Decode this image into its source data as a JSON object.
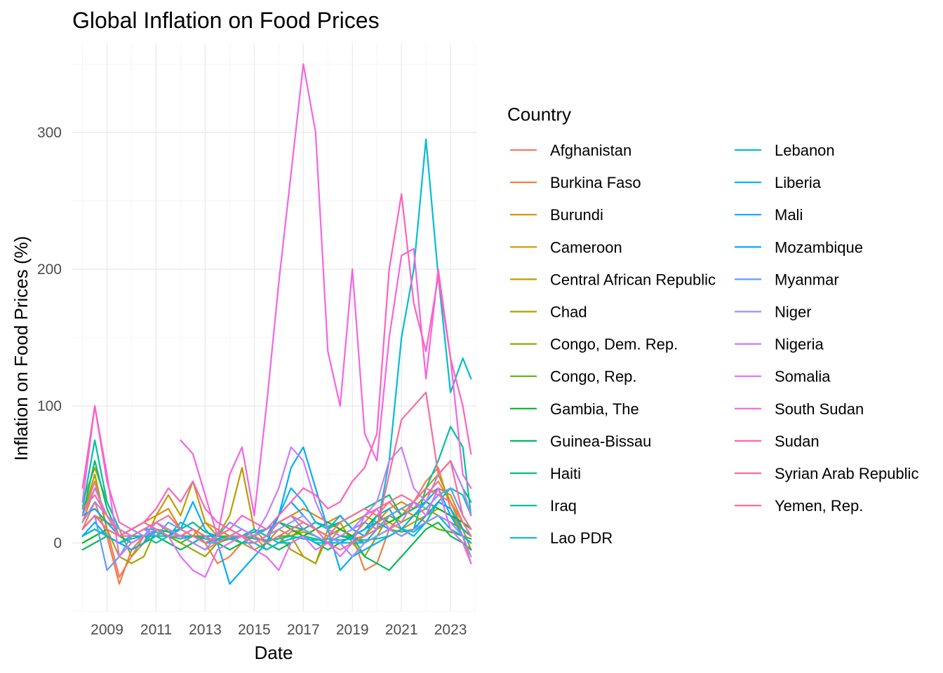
{
  "chart_data": {
    "type": "line",
    "title": "Global Inflation on Food Prices",
    "xlabel": "Date",
    "ylabel": "Inflation on Food Prices (%)",
    "x_ticks": [
      "2009",
      "2011",
      "2013",
      "2015",
      "2017",
      "2019",
      "2021",
      "2023"
    ],
    "y_ticks": [
      "0",
      "100",
      "200",
      "300"
    ],
    "ylim": [
      -50,
      365
    ],
    "xlim": [
      "2007-08",
      "2024-02"
    ],
    "grid": true,
    "legend": {
      "title": "Country",
      "placement": "right",
      "columns": 2
    },
    "dates": [
      "2008-01",
      "2008-07",
      "2009-01",
      "2009-07",
      "2010-01",
      "2010-07",
      "2011-01",
      "2011-07",
      "2012-01",
      "2012-07",
      "2013-01",
      "2013-07",
      "2014-01",
      "2014-07",
      "2015-01",
      "2015-07",
      "2016-01",
      "2016-07",
      "2017-01",
      "2017-07",
      "2018-01",
      "2018-07",
      "2019-01",
      "2019-07",
      "2020-01",
      "2020-07",
      "2021-01",
      "2021-07",
      "2022-01",
      "2022-07",
      "2023-01",
      "2023-07",
      "2023-11"
    ],
    "series": [
      {
        "name": "Afghanistan",
        "color": "#F8766D",
        "values": [
          20,
          45,
          10,
          -25,
          -10,
          5,
          15,
          10,
          5,
          0,
          -5,
          0,
          5,
          0,
          5,
          0,
          5,
          10,
          15,
          10,
          5,
          10,
          5,
          15,
          25,
          30,
          20,
          25,
          35,
          45,
          30,
          10,
          5
        ]
      },
      {
        "name": "Burkina Faso",
        "color": "#EE8043",
        "values": [
          10,
          30,
          5,
          -30,
          -5,
          5,
          15,
          8,
          5,
          10,
          0,
          -15,
          -10,
          0,
          5,
          -5,
          0,
          8,
          10,
          5,
          0,
          10,
          5,
          -20,
          -15,
          10,
          20,
          30,
          45,
          55,
          25,
          5,
          -15
        ]
      },
      {
        "name": "Burundi",
        "color": "#E08B00",
        "values": [
          15,
          40,
          20,
          5,
          10,
          15,
          20,
          25,
          10,
          5,
          15,
          10,
          5,
          0,
          5,
          10,
          15,
          20,
          25,
          20,
          15,
          20,
          10,
          5,
          15,
          25,
          30,
          25,
          35,
          40,
          35,
          15,
          5
        ]
      },
      {
        "name": "Cameroon",
        "color": "#CF9400",
        "values": [
          5,
          10,
          5,
          0,
          5,
          5,
          10,
          8,
          5,
          5,
          5,
          0,
          5,
          5,
          5,
          0,
          5,
          5,
          8,
          5,
          0,
          5,
          3,
          5,
          10,
          15,
          10,
          15,
          20,
          25,
          20,
          10,
          5
        ]
      },
      {
        "name": "Central African Republic",
        "color": "#BB9D00",
        "values": [
          30,
          55,
          30,
          10,
          -10,
          0,
          20,
          35,
          20,
          45,
          15,
          5,
          20,
          55,
          10,
          0,
          10,
          5,
          -10,
          -15,
          5,
          10,
          5,
          15,
          10,
          20,
          25,
          20,
          15,
          30,
          25,
          10,
          -5
        ]
      },
      {
        "name": "Chad",
        "color": "#A3A500",
        "values": [
          20,
          50,
          10,
          -10,
          -15,
          -10,
          10,
          5,
          0,
          -5,
          -10,
          0,
          5,
          0,
          -5,
          0,
          5,
          -5,
          -10,
          -15,
          10,
          15,
          0,
          -10,
          5,
          20,
          25,
          30,
          40,
          50,
          30,
          10,
          -5
        ]
      },
      {
        "name": "Congo, Dem. Rep.",
        "color": "#85AD00",
        "values": [
          10,
          20,
          15,
          10,
          5,
          5,
          5,
          10,
          5,
          5,
          0,
          5,
          5,
          5,
          10,
          5,
          15,
          20,
          15,
          10,
          5,
          10,
          15,
          20,
          15,
          20,
          15,
          20,
          25,
          20,
          15,
          10,
          5
        ]
      },
      {
        "name": "Congo, Rep.",
        "color": "#5BB300",
        "values": [
          5,
          10,
          5,
          0,
          5,
          5,
          10,
          5,
          0,
          5,
          5,
          0,
          3,
          0,
          5,
          0,
          5,
          5,
          10,
          5,
          0,
          5,
          5,
          0,
          5,
          10,
          8,
          10,
          15,
          10,
          8,
          5,
          3
        ]
      },
      {
        "name": "Gambia, The",
        "color": "#00B81F",
        "values": [
          0,
          5,
          10,
          5,
          0,
          5,
          10,
          5,
          5,
          10,
          5,
          0,
          5,
          10,
          5,
          10,
          15,
          10,
          5,
          10,
          15,
          10,
          5,
          10,
          20,
          15,
          20,
          25,
          30,
          25,
          20,
          15,
          10
        ]
      },
      {
        "name": "Guinea-Bissau",
        "color": "#00BC59",
        "values": [
          -5,
          0,
          5,
          0,
          -5,
          0,
          5,
          0,
          -5,
          0,
          5,
          0,
          -5,
          0,
          5,
          0,
          -5,
          0,
          5,
          0,
          -5,
          0,
          5,
          -10,
          -15,
          -20,
          -10,
          0,
          10,
          15,
          5,
          0,
          -5
        ]
      },
      {
        "name": "Haiti",
        "color": "#00BE81",
        "values": [
          20,
          60,
          25,
          5,
          10,
          5,
          10,
          8,
          10,
          15,
          8,
          5,
          3,
          5,
          8,
          10,
          15,
          12,
          10,
          15,
          12,
          15,
          20,
          25,
          30,
          35,
          20,
          25,
          30,
          50,
          60,
          40,
          30
        ]
      },
      {
        "name": "Iraq",
        "color": "#00C0A1",
        "values": [
          25,
          75,
          30,
          10,
          5,
          5,
          0,
          5,
          5,
          5,
          0,
          3,
          5,
          0,
          0,
          5,
          0,
          3,
          5,
          3,
          0,
          5,
          3,
          0,
          5,
          10,
          5,
          10,
          40,
          60,
          85,
          70,
          20
        ]
      },
      {
        "name": "Lao PDR",
        "color": "#00C0BC",
        "values": [
          5,
          10,
          5,
          0,
          3,
          5,
          8,
          5,
          3,
          5,
          3,
          2,
          3,
          5,
          3,
          2,
          3,
          5,
          3,
          2,
          3,
          2,
          3,
          2,
          3,
          5,
          10,
          8,
          15,
          30,
          40,
          35,
          20
        ]
      },
      {
        "name": "Lebanon",
        "color": "#00BDD3",
        "values": [
          5,
          10,
          5,
          0,
          5,
          5,
          5,
          5,
          5,
          5,
          0,
          0,
          5,
          0,
          0,
          -5,
          0,
          0,
          5,
          0,
          0,
          0,
          0,
          0,
          10,
          60,
          150,
          200,
          295,
          195,
          110,
          135,
          120
        ]
      },
      {
        "name": "Liberia",
        "color": "#00B6E9",
        "values": [
          10,
          20,
          10,
          5,
          5,
          10,
          10,
          5,
          15,
          10,
          5,
          0,
          5,
          5,
          10,
          5,
          20,
          40,
          30,
          15,
          10,
          20,
          10,
          5,
          20,
          25,
          10,
          5,
          15,
          20,
          10,
          5,
          0
        ]
      },
      {
        "name": "Mali",
        "color": "#00AEF9",
        "values": [
          5,
          15,
          5,
          0,
          -5,
          0,
          10,
          5,
          10,
          30,
          10,
          0,
          -30,
          -20,
          -10,
          0,
          20,
          55,
          70,
          40,
          10,
          -20,
          -10,
          -5,
          0,
          5,
          10,
          20,
          30,
          40,
          20,
          5,
          0
        ]
      },
      {
        "name": "Mozambique",
        "color": "#00A5FF",
        "values": [
          20,
          25,
          15,
          5,
          10,
          15,
          10,
          5,
          5,
          0,
          5,
          5,
          10,
          5,
          0,
          5,
          20,
          30,
          20,
          10,
          5,
          0,
          5,
          10,
          15,
          10,
          5,
          10,
          20,
          30,
          25,
          10,
          5
        ]
      },
      {
        "name": "Myanmar",
        "color": "#619CFF",
        "values": [
          10,
          20,
          -20,
          -10,
          5,
          10,
          5,
          15,
          10,
          5,
          0,
          5,
          15,
          10,
          5,
          10,
          15,
          20,
          10,
          5,
          0,
          5,
          10,
          15,
          10,
          20,
          25,
          30,
          25,
          35,
          40,
          20,
          10
        ]
      },
      {
        "name": "Niger",
        "color": "#9F8CFF",
        "values": [
          15,
          30,
          20,
          5,
          10,
          5,
          15,
          10,
          5,
          0,
          -5,
          5,
          10,
          5,
          0,
          5,
          10,
          15,
          20,
          10,
          5,
          0,
          -10,
          0,
          5,
          10,
          5,
          10,
          15,
          20,
          15,
          5,
          -10
        ]
      },
      {
        "name": "Nigeria",
        "color": "#C77CFF",
        "values": [
          20,
          40,
          20,
          10,
          5,
          10,
          15,
          10,
          5,
          10,
          5,
          0,
          5,
          10,
          5,
          20,
          40,
          70,
          60,
          30,
          10,
          5,
          10,
          20,
          30,
          60,
          70,
          40,
          30,
          50,
          60,
          40,
          20
        ]
      },
      {
        "name": "Somalia",
        "color": "#E26EF7",
        "values": [
          30,
          100,
          50,
          -10,
          0,
          5,
          10,
          5,
          -10,
          -20,
          -25,
          -5,
          0,
          5,
          -5,
          -10,
          -20,
          0,
          5,
          -5,
          0,
          -10,
          0,
          20,
          25,
          10,
          15,
          30,
          20,
          40,
          10,
          0,
          -15
        ]
      },
      {
        "name": "South Sudan",
        "color": "#F564E3",
        "values": [
          0,
          0,
          0,
          0,
          0,
          0,
          0,
          0,
          75,
          65,
          35,
          5,
          50,
          70,
          20,
          100,
          190,
          270,
          350,
          300,
          140,
          100,
          200,
          80,
          60,
          150,
          210,
          215,
          120,
          200,
          135,
          50,
          40
        ]
      },
      {
        "name": "Sudan",
        "color": "#FF62BC",
        "values": [
          40,
          100,
          45,
          15,
          10,
          15,
          25,
          40,
          30,
          45,
          25,
          15,
          10,
          20,
          15,
          10,
          20,
          30,
          40,
          35,
          25,
          30,
          45,
          55,
          80,
          200,
          255,
          175,
          140,
          195,
          135,
          100,
          65
        ]
      },
      {
        "name": "Syrian Arab Republic",
        "color": "#FF6A98",
        "values": [
          10,
          20,
          10,
          5,
          10,
          15,
          10,
          5,
          5,
          10,
          5,
          0,
          5,
          5,
          5,
          0,
          5,
          10,
          15,
          10,
          0,
          -5,
          0,
          5,
          10,
          50,
          90,
          100,
          110,
          50,
          60,
          20,
          10
        ]
      },
      {
        "name": "Yemen, Rep.",
        "color": "#FF6C91",
        "values": [
          25,
          35,
          20,
          5,
          5,
          10,
          15,
          20,
          10,
          5,
          0,
          5,
          10,
          5,
          0,
          5,
          15,
          20,
          15,
          10,
          5,
          15,
          20,
          25,
          20,
          30,
          35,
          30,
          40,
          35,
          30,
          15,
          5
        ]
      }
    ]
  }
}
